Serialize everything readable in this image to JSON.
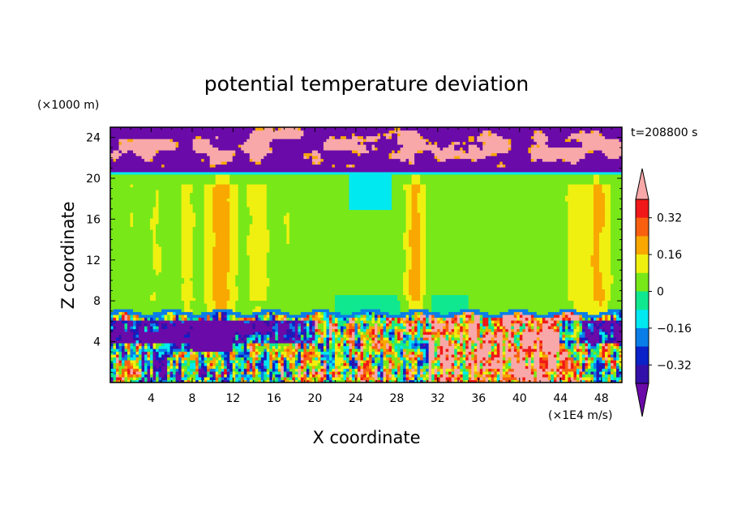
{
  "chart_data": {
    "type": "heatmap",
    "title": "potential temperature deviation",
    "xlabel": "X coordinate",
    "ylabel": "Z coordinate",
    "x_unit": "(×1E4 m/s)",
    "y_unit": "(×1000 m)",
    "time_label": "t=208800 s",
    "x_range": [
      0,
      50
    ],
    "y_range": [
      0,
      25
    ],
    "x_ticks": [
      4,
      8,
      12,
      16,
      20,
      24,
      28,
      32,
      36,
      40,
      44,
      48
    ],
    "y_ticks": [
      4,
      8,
      12,
      16,
      20,
      24
    ],
    "colorbar": {
      "ticks": [
        "0.32",
        "0.16",
        "0",
        "−0.16",
        "−0.32"
      ],
      "tick_values": [
        0.32,
        0.16,
        0,
        -0.16,
        -0.32
      ],
      "levels": [
        -0.48,
        -0.4,
        -0.32,
        -0.24,
        -0.16,
        -0.08,
        0,
        0.08,
        0.16,
        0.24,
        0.32,
        0.4,
        0.48
      ],
      "colors": [
        "#6a0aa8",
        "#3410aa",
        "#0a22c8",
        "#0a7ee8",
        "#00e8f0",
        "#10e890",
        "#78e818",
        "#f0f010",
        "#f8a800",
        "#f86010",
        "#f01818",
        "#f8a8a8"
      ]
    },
    "layers": [
      {
        "z_range": [
          20.5,
          25
        ],
        "description_value": "above 0.40 / below -0.48 mix"
      },
      {
        "z_range": [
          6.5,
          20.5
        ],
        "description_value": "0 to 0.08 background"
      },
      {
        "z_range": [
          0,
          6.5
        ],
        "description_value": "mixed -0.48 to 0.48"
      }
    ]
  }
}
